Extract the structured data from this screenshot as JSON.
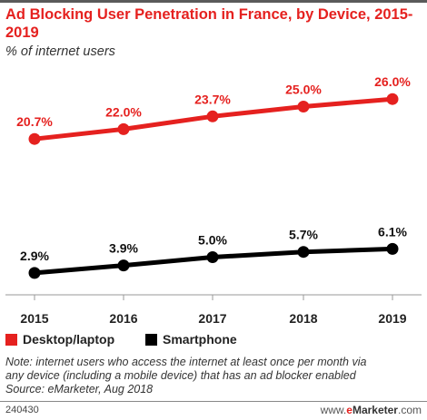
{
  "header": {
    "title": "Ad Blocking User Penetration in France, by Device, 2015-2019",
    "subtitle": "% of internet users"
  },
  "legend": {
    "items": [
      {
        "label": "Desktop/laptop",
        "color": "#e5211f"
      },
      {
        "label": "Smartphone",
        "color": "#000000"
      }
    ]
  },
  "notes": {
    "line1": "Note: internet users who access the internet at least once per month via",
    "line2": "any device (including a mobile device) that has an ad blocker enabled",
    "line3": "Source: eMarketer, Aug 2018"
  },
  "footer": {
    "id": "240430",
    "brand_prefix": "www.",
    "brand_e": "e",
    "brand_name": "Marketer",
    "brand_suffix": ".com"
  },
  "chart_data": {
    "type": "line",
    "title": "Ad Blocking User Penetration in France, by Device, 2015-2019",
    "subtitle": "% of internet users",
    "categories": [
      "2015",
      "2016",
      "2017",
      "2018",
      "2019"
    ],
    "series": [
      {
        "name": "Desktop/laptop",
        "color": "#e5211f",
        "values": [
          20.7,
          22.0,
          23.7,
          25.0,
          26.0
        ],
        "labels": [
          "20.7%",
          "22.0%",
          "23.7%",
          "25.0%",
          "26.0%"
        ]
      },
      {
        "name": "Smartphone",
        "color": "#000000",
        "values": [
          2.9,
          3.9,
          5.0,
          5.7,
          6.1
        ],
        "labels": [
          "2.9%",
          "3.9%",
          "5.0%",
          "5.7%",
          "6.1%"
        ]
      }
    ],
    "ylim": [
      0,
      30
    ],
    "grid": false,
    "legend_position": "bottom-left"
  }
}
